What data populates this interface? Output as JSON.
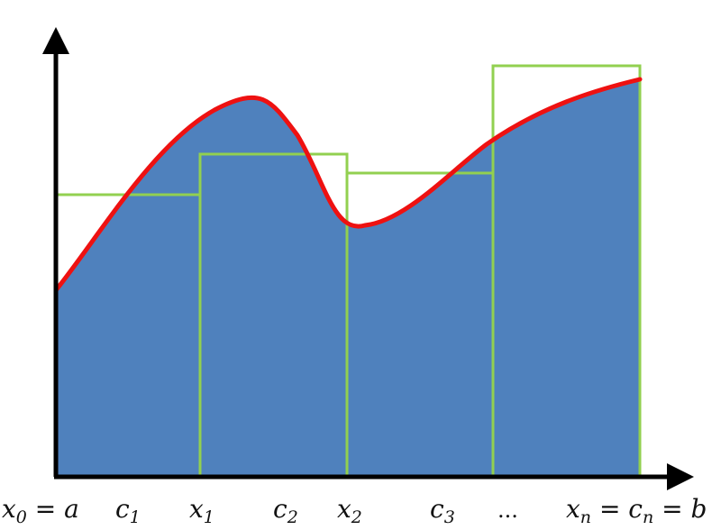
{
  "figure": {
    "colors": {
      "area_fill": "#4f81bd",
      "curve": "#ee1111",
      "rectangles": "#92d050",
      "axes": "#000000",
      "background": "#ffffff"
    },
    "labels": {
      "x0": {
        "base": "x",
        "sub": "0",
        "rest": " = a"
      },
      "c1": {
        "base": "c",
        "sub": "1"
      },
      "x1": {
        "base": "x",
        "sub": "1"
      },
      "c2": {
        "base": "c",
        "sub": "2"
      },
      "x2": {
        "base": "x",
        "sub": "2"
      },
      "c3": {
        "base": "c",
        "sub": "3"
      },
      "dots": "...",
      "xn": {
        "base": "x",
        "sub": "n",
        "mid": " = c",
        "sub2": "n",
        "rest": " = b"
      }
    },
    "rectangle_count": 4
  }
}
